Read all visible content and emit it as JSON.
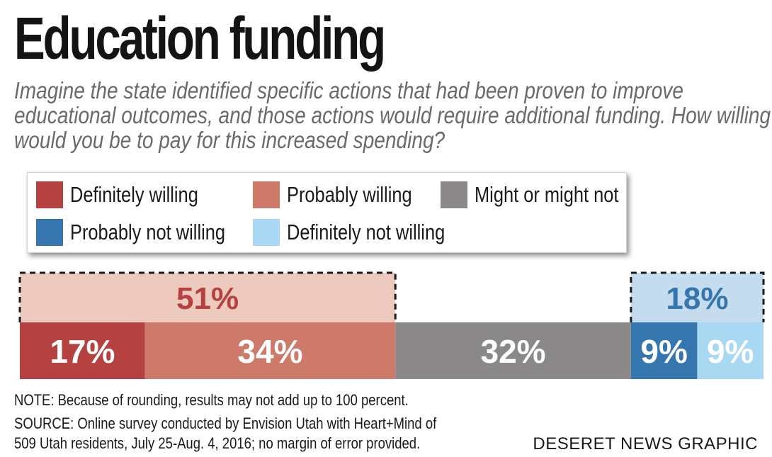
{
  "title": "Education funding",
  "subtitle": "Imagine the state identified specific actions that had been proven to improve educational outcomes, and those actions would require additional funding. How willing would you be to pay for this increased spending?",
  "legend": [
    {
      "label": "Definitely willing",
      "color": "#b54140"
    },
    {
      "label": "Probably willing",
      "color": "#cd7a6a"
    },
    {
      "label": "Might or might not",
      "color": "#8a8889"
    },
    {
      "label": "Probably not willing",
      "color": "#3476ad"
    },
    {
      "label": "Definitely not willing",
      "color": "#a9d8f2"
    }
  ],
  "chart_data": {
    "type": "bar",
    "orientation": "horizontal-stacked",
    "series": [
      {
        "name": "Definitely willing",
        "value": 17,
        "label": "17%",
        "color": "#b54140"
      },
      {
        "name": "Probably willing",
        "value": 34,
        "label": "34%",
        "color": "#cd7a6a"
      },
      {
        "name": "Might or might not",
        "value": 32,
        "label": "32%",
        "color": "#8a8889"
      },
      {
        "name": "Probably not willing",
        "value": 9,
        "label": "9%",
        "color": "#3476ad"
      },
      {
        "name": "Definitely not willing",
        "value": 9,
        "label": "9%",
        "color": "#a9d8f2"
      }
    ],
    "groups": [
      {
        "label": "51%",
        "value": 51,
        "covers": [
          0,
          1
        ],
        "fill": "#edcabd",
        "text_color": "#b54140"
      },
      {
        "label": "18%",
        "value": 18,
        "covers": [
          3,
          4
        ],
        "fill": "#c5dcef",
        "text_color": "#3476ad"
      }
    ]
  },
  "notes": [
    "NOTE: Because of rounding, results may not add up to 100 percent.",
    "SOURCE: Online survey conducted by Envision Utah with Heart+Mind of",
    "509 Utah residents, July 25-Aug. 4, 2016; no margin of error provided."
  ],
  "credit": "DESERET NEWS GRAPHIC"
}
